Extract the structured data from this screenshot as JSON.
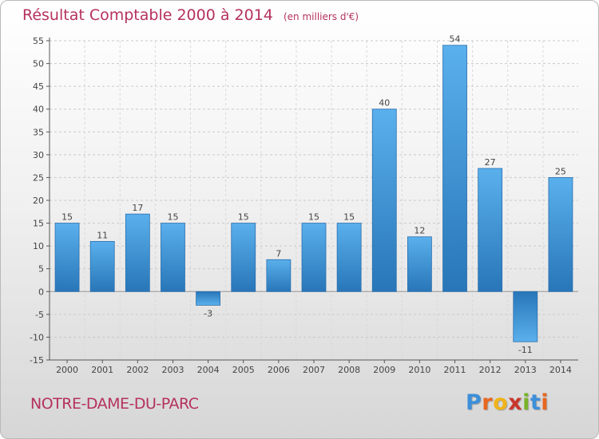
{
  "header": {
    "title": "Résultat Comptable 2000 à 2014",
    "subtitle": "(en milliers d'€)"
  },
  "footer": {
    "commune": "NOTRE-DAME-DU-PARC",
    "brand": "Proxiti",
    "brand_letters": [
      {
        "ch": "P",
        "color": "#3d8fd9"
      },
      {
        "ch": "r",
        "color": "#e8661e"
      },
      {
        "ch": "o",
        "color": "#f0b419"
      },
      {
        "ch": "x",
        "color": "#c9352b"
      },
      {
        "ch": "i",
        "color": "#79b329"
      },
      {
        "ch": "t",
        "color": "#3d8fd9"
      },
      {
        "ch": "i",
        "color": "#e8661e"
      }
    ]
  },
  "chart_data": {
    "type": "bar",
    "title": "Résultat Comptable 2000 à 2014",
    "subtitle": "(en milliers d'€)",
    "categories": [
      "2000",
      "2001",
      "2002",
      "2003",
      "2004",
      "2005",
      "2006",
      "2007",
      "2008",
      "2009",
      "2010",
      "2011",
      "2012",
      "2013",
      "2014"
    ],
    "values": [
      15,
      11,
      17,
      15,
      -3,
      15,
      7,
      15,
      15,
      40,
      12,
      54,
      27,
      -11,
      25
    ],
    "data_labels": [
      "15",
      "11",
      "17",
      "15",
      "-3",
      "15",
      "7",
      "15",
      "15",
      "40",
      "12",
      "54",
      "27",
      "-11",
      "25"
    ],
    "xlabel": "",
    "ylabel": "",
    "ylim": [
      -15,
      55
    ],
    "yticks": [
      -15,
      -10,
      -5,
      0,
      5,
      10,
      15,
      20,
      25,
      30,
      35,
      40,
      45,
      50,
      55
    ],
    "grid": "horizontal dashed",
    "bar_color": "#3a93d9",
    "axis_color": "#555555"
  }
}
